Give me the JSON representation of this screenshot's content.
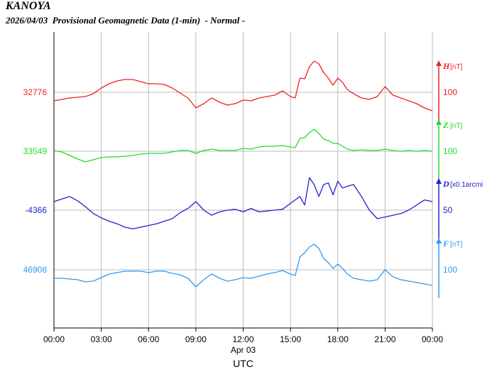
{
  "header": {
    "station": "KANOYA",
    "date": "2026/04/03",
    "description": "Provisional Geomagnetic Data (1-min)",
    "status": "- Normal -"
  },
  "chart_data": {
    "type": "line",
    "title": "KANOYA",
    "subtitle": "2026/04/03  Provisional Geomagnetic Data (1-min)  - Normal -",
    "xlabel": "UTC",
    "x_date_label": "Apr 03",
    "x_ticks": [
      "00:00",
      "03:00",
      "06:00",
      "09:00",
      "12:00",
      "15:00",
      "18:00",
      "21:00",
      "00:00"
    ],
    "xlim_hours": [
      0,
      24
    ],
    "grid": true,
    "colors": {
      "H": "#ee2222",
      "Z": "#22dd22",
      "D": "#2222cc",
      "F": "#3399ee"
    },
    "series": [
      {
        "name": "H",
        "unit": "[nT]",
        "baseline_label": "32776",
        "scale_label": "100",
        "color": "#ee2222",
        "x": [
          0,
          0.5,
          1,
          1.5,
          2,
          2.5,
          3,
          3.5,
          4,
          4.5,
          5,
          5.5,
          6,
          6.5,
          7,
          7.5,
          8,
          8.5,
          9,
          9.5,
          10,
          10.5,
          11,
          11.5,
          12,
          12.5,
          13,
          13.5,
          14,
          14.5,
          15,
          15.3,
          15.6,
          15.9,
          16.2,
          16.5,
          16.8,
          17.1,
          17.4,
          17.7,
          18,
          18.3,
          18.6,
          19,
          19.5,
          20,
          20.5,
          21,
          21.5,
          22,
          22.5,
          23,
          23.5,
          24
        ],
        "y": [
          32764,
          32766,
          32768,
          32769,
          32770,
          32774,
          32782,
          32788,
          32792,
          32794,
          32794,
          32791,
          32788,
          32788,
          32787,
          32782,
          32775,
          32768,
          32754,
          32760,
          32768,
          32762,
          32758,
          32760,
          32765,
          32764,
          32768,
          32770,
          32772,
          32778,
          32770,
          32768,
          32796,
          32795,
          32812,
          32820,
          32816,
          32804,
          32796,
          32786,
          32796,
          32790,
          32780,
          32774,
          32768,
          32766,
          32770,
          32784,
          32772,
          32768,
          32764,
          32760,
          32754,
          32750
        ]
      },
      {
        "name": "Z",
        "unit": "[nT]",
        "baseline_label": "33549",
        "scale_label": "100",
        "color": "#22dd22",
        "x": [
          0,
          0.5,
          1,
          1.5,
          2,
          2.5,
          3,
          3.5,
          4,
          4.5,
          5,
          5.5,
          6,
          6.5,
          7,
          7.5,
          8,
          8.5,
          9,
          9.5,
          10,
          10.5,
          11,
          11.5,
          12,
          12.5,
          13,
          13.5,
          14,
          14.5,
          15,
          15.3,
          15.6,
          15.9,
          16.2,
          16.5,
          16.8,
          17.1,
          17.4,
          17.7,
          18,
          18.3,
          18.6,
          19,
          19.5,
          20,
          20.5,
          21,
          21.5,
          22,
          22.5,
          23,
          23.5,
          24
        ],
        "y": [
          33550,
          33548,
          33543,
          33538,
          33534,
          33537,
          33540,
          33541,
          33541,
          33542,
          33543,
          33545,
          33546,
          33546,
          33546,
          33548,
          33550,
          33550,
          33546,
          33550,
          33552,
          33550,
          33550,
          33550,
          33553,
          33552,
          33555,
          33556,
          33556,
          33557,
          33555,
          33554,
          33567,
          33568,
          33575,
          33580,
          33574,
          33566,
          33564,
          33560,
          33560,
          33556,
          33552,
          33550,
          33551,
          33550,
          33550,
          33552,
          33550,
          33549,
          33550,
          33549,
          33550,
          33549
        ]
      },
      {
        "name": "D",
        "unit": "[x0.1arcmi",
        "baseline_label": "-4366",
        "scale_label": "50",
        "color": "#2222cc",
        "x": [
          0,
          0.5,
          1,
          1.5,
          2,
          2.5,
          3,
          3.5,
          4,
          4.5,
          5,
          5.5,
          6,
          6.5,
          7,
          7.5,
          8,
          8.5,
          9,
          9.5,
          10,
          10.5,
          11,
          11.5,
          12,
          12.5,
          13,
          13.5,
          14,
          14.5,
          15,
          15.3,
          15.6,
          15.9,
          16.2,
          16.5,
          16.8,
          17.1,
          17.4,
          17.7,
          18,
          18.3,
          18.6,
          19,
          19.5,
          20,
          20.5,
          21,
          21.5,
          22,
          22.5,
          23,
          23.5,
          24
        ],
        "y": [
          -4356,
          -4353,
          -4350,
          -4355,
          -4362,
          -4370,
          -4375,
          -4379,
          -4382,
          -4386,
          -4388,
          -4386,
          -4384,
          -4382,
          -4379,
          -4376,
          -4369,
          -4364,
          -4356,
          -4366,
          -4372,
          -4368,
          -4366,
          -4365,
          -4368,
          -4364,
          -4368,
          -4367,
          -4366,
          -4365,
          -4358,
          -4354,
          -4350,
          -4360,
          -4328,
          -4336,
          -4350,
          -4336,
          -4334,
          -4348,
          -4332,
          -4340,
          -4338,
          -4336,
          -4350,
          -4366,
          -4376,
          -4374,
          -4372,
          -4370,
          -4366,
          -4360,
          -4354,
          -4356
        ]
      },
      {
        "name": "F",
        "unit": "[nT]",
        "baseline_label": "46908",
        "scale_label": "100",
        "color": "#3399ee",
        "x": [
          0,
          0.5,
          1,
          1.5,
          2,
          2.5,
          3,
          3.5,
          4,
          4.5,
          5,
          5.5,
          6,
          6.5,
          7,
          7.5,
          8,
          8.5,
          9,
          9.5,
          10,
          10.5,
          11,
          11.5,
          12,
          12.5,
          13,
          13.5,
          14,
          14.5,
          15,
          15.3,
          15.6,
          15.9,
          16.2,
          16.5,
          16.8,
          17.1,
          17.4,
          17.7,
          18,
          18.3,
          18.6,
          19,
          19.5,
          20,
          20.5,
          21,
          21.5,
          22,
          22.5,
          23,
          23.5,
          24
        ],
        "y": [
          46896,
          46896,
          46895,
          46894,
          46891,
          46892,
          46897,
          46902,
          46904,
          46906,
          46906,
          46906,
          46904,
          46906,
          46906,
          46903,
          46901,
          46896,
          46884,
          46894,
          46902,
          46896,
          46892,
          46894,
          46897,
          46896,
          46899,
          46902,
          46904,
          46907,
          46902,
          46900,
          46926,
          46932,
          46940,
          46944,
          46938,
          46924,
          46918,
          46910,
          46916,
          46910,
          46902,
          46896,
          46894,
          46892,
          46894,
          46908,
          46898,
          46894,
          46892,
          46890,
          46888,
          46886
        ]
      }
    ]
  }
}
